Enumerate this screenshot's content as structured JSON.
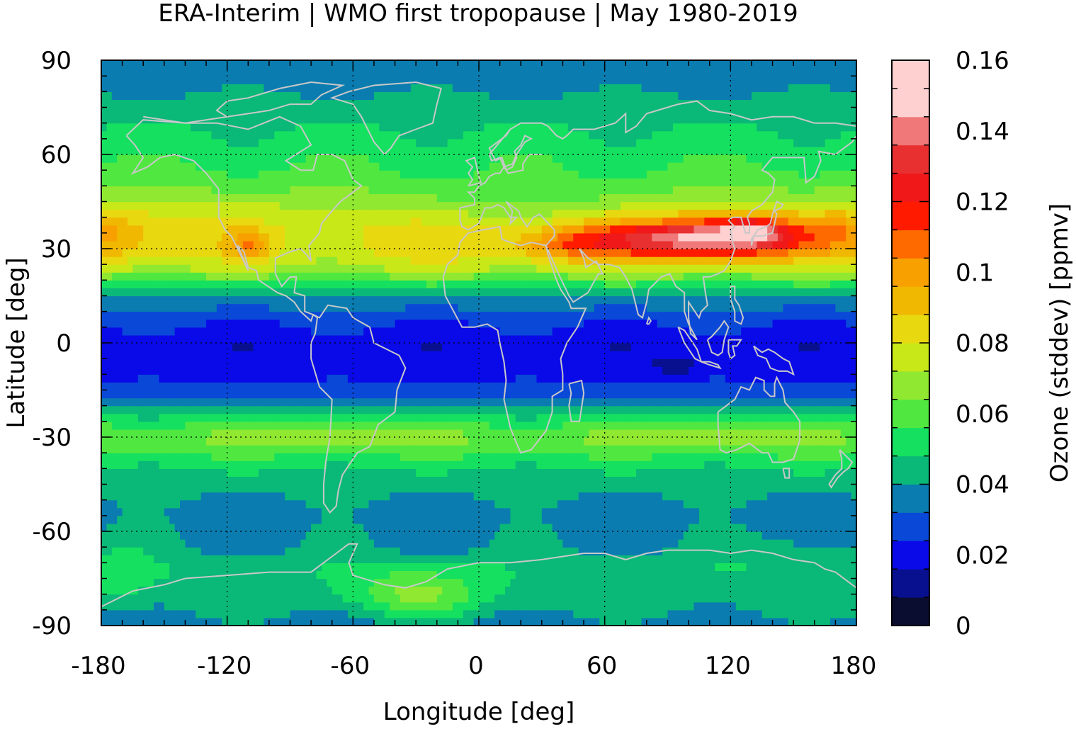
{
  "chart_data": {
    "type": "heatmap",
    "title": "ERA-Interim | WMO first tropopause | May 1980-2019",
    "xlabel": "Longitude [deg]",
    "ylabel": "Latitude [deg]",
    "colorbar_label": "Ozone (stddev) [ppmv]",
    "xlim": [
      -180,
      180
    ],
    "ylim": [
      -90,
      90
    ],
    "x_ticks": [
      -180,
      -120,
      -60,
      0,
      60,
      120,
      180
    ],
    "y_ticks": [
      -90,
      -60,
      -30,
      0,
      30,
      60,
      90
    ],
    "x_tick_labels": [
      "-180",
      "-120",
      "-60",
      "0",
      "60",
      "120",
      "180"
    ],
    "y_tick_labels": [
      "-90",
      "-60",
      "-30",
      "0",
      "30",
      "60",
      "90"
    ],
    "grid": true,
    "colorbar_range": [
      0,
      0.16
    ],
    "colorbar_ticks": [
      0,
      0.02,
      0.04,
      0.06,
      0.08,
      0.1,
      0.12,
      0.14,
      0.16
    ],
    "colorbar_tick_labels": [
      "0",
      "0.02",
      "0.04",
      "0.06",
      "0.08",
      "0.1",
      "0.12",
      "0.14",
      "0.16"
    ],
    "colorbar_step": 0.008,
    "colorbar_colors": [
      "#0b0d30",
      "#081090",
      "#0a0ae8",
      "#0a48d8",
      "#0a7cb0",
      "#0ab878",
      "#15e060",
      "#50e840",
      "#90e830",
      "#c8e818",
      "#e8d810",
      "#f0b800",
      "#f8a000",
      "#ff6a00",
      "#ff1a00",
      "#f01818",
      "#e83030",
      "#f07878",
      "#ffd0d0"
    ],
    "coastline_color": "#c8c8c8",
    "zonal_mean_stddev": [
      {
        "lat": -90,
        "value": 0.036
      },
      {
        "lat": -80,
        "value": 0.046
      },
      {
        "lat": -72,
        "value": 0.047
      },
      {
        "lat": -65,
        "value": 0.039
      },
      {
        "lat": -55,
        "value": 0.037
      },
      {
        "lat": -45,
        "value": 0.042
      },
      {
        "lat": -38,
        "value": 0.051
      },
      {
        "lat": -32,
        "value": 0.063
      },
      {
        "lat": -28,
        "value": 0.062
      },
      {
        "lat": -22,
        "value": 0.046
      },
      {
        "lat": -17,
        "value": 0.031
      },
      {
        "lat": -10,
        "value": 0.021
      },
      {
        "lat": 0,
        "value": 0.019
      },
      {
        "lat": 5,
        "value": 0.023
      },
      {
        "lat": 12,
        "value": 0.034
      },
      {
        "lat": 18,
        "value": 0.052
      },
      {
        "lat": 24,
        "value": 0.074
      },
      {
        "lat": 30,
        "value": 0.086
      },
      {
        "lat": 36,
        "value": 0.087
      },
      {
        "lat": 42,
        "value": 0.079
      },
      {
        "lat": 48,
        "value": 0.066
      },
      {
        "lat": 55,
        "value": 0.057
      },
      {
        "lat": 62,
        "value": 0.052
      },
      {
        "lat": 70,
        "value": 0.047
      },
      {
        "lat": 78,
        "value": 0.041
      },
      {
        "lat": 84,
        "value": 0.036
      },
      {
        "lat": 90,
        "value": 0.036
      }
    ],
    "anomalies": [
      {
        "lon": 85,
        "lat": 33,
        "dlon": 45,
        "dlat": 6,
        "value": 0.042
      },
      {
        "lon": 125,
        "lat": 34,
        "dlon": 32,
        "dlat": 6,
        "value": 0.048
      },
      {
        "lon": 130,
        "lat": 36,
        "dlon": 10,
        "dlat": 3,
        "value": 0.02
      },
      {
        "lon": 40,
        "lat": 31,
        "dlon": 20,
        "dlat": 5,
        "value": 0.015
      },
      {
        "lon": -110,
        "lat": 31,
        "dlon": 10,
        "dlat": 5,
        "value": 0.022
      },
      {
        "lon": -175,
        "lat": 34,
        "dlon": 15,
        "dlat": 8,
        "value": 0.012
      },
      {
        "lon": 175,
        "lat": 35,
        "dlon": 15,
        "dlat": 8,
        "value": 0.012
      },
      {
        "lon": -90,
        "lat": 34,
        "dlon": 40,
        "dlat": 10,
        "value": -0.008
      },
      {
        "lon": 20,
        "lat": 42,
        "dlon": 60,
        "dlat": 10,
        "value": -0.01
      },
      {
        "lon": 95,
        "lat": -7,
        "dlon": 10,
        "dlat": 3,
        "value": -0.012
      },
      {
        "lon": -30,
        "lat": -80,
        "dlon": 30,
        "dlat": 8,
        "value": 0.02
      },
      {
        "lon": -70,
        "lat": -30,
        "dlon": 25,
        "dlat": 3,
        "value": 0.012
      },
      {
        "lon": 120,
        "lat": -30,
        "dlon": 30,
        "dlat": 3,
        "value": 0.01
      },
      {
        "lon": 145,
        "lat": -66,
        "dlon": 30,
        "dlat": 5,
        "value": 0.005
      },
      {
        "lon": -170,
        "lat": -70,
        "dlon": 15,
        "dlat": 10,
        "value": 0.008
      }
    ]
  }
}
